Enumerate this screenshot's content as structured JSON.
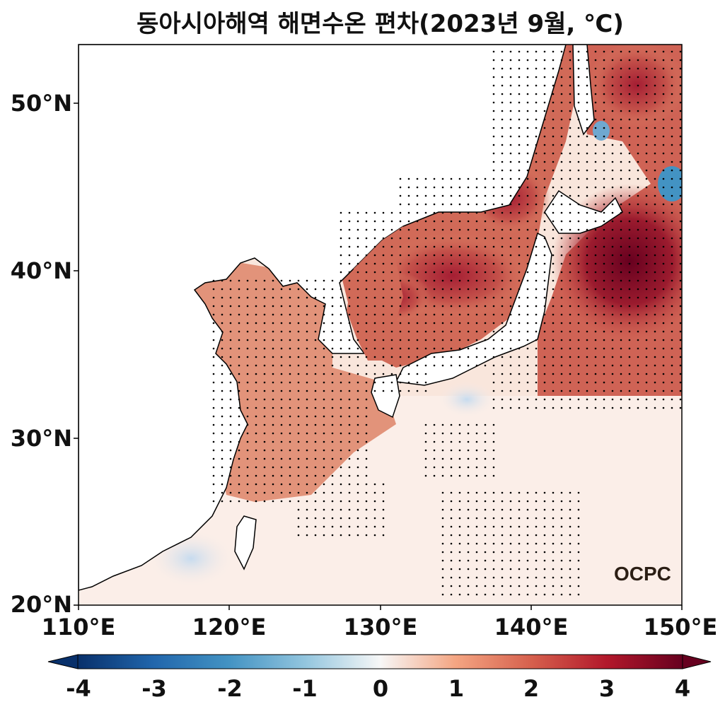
{
  "title": "동아시아해역 해면수온 편차(2023년 9월, ℃)",
  "map": {
    "lat_ticks": [
      "50°N",
      "40°N",
      "30°N",
      "20°N"
    ],
    "lon_ticks": [
      "110°E",
      "120°E",
      "130°E",
      "140°E",
      "150°E"
    ],
    "lon_range": [
      110,
      150
    ],
    "lat_range": [
      20,
      53.5
    ],
    "stippling": "statistically significant anomaly",
    "logo_text": "OCPC"
  },
  "colorbar": {
    "ticks": [
      "-4",
      "-3",
      "-2",
      "-1",
      "0",
      "1",
      "2",
      "3",
      "4"
    ],
    "range": [
      -4,
      4
    ],
    "colormap": "RdBu_r",
    "extend": "both",
    "colors": {
      "min": "#08306b",
      "neg_mid": "#4393c3",
      "zero": "#f7f7f7",
      "pos_mid": "#d6604d",
      "max": "#67001f"
    }
  }
}
